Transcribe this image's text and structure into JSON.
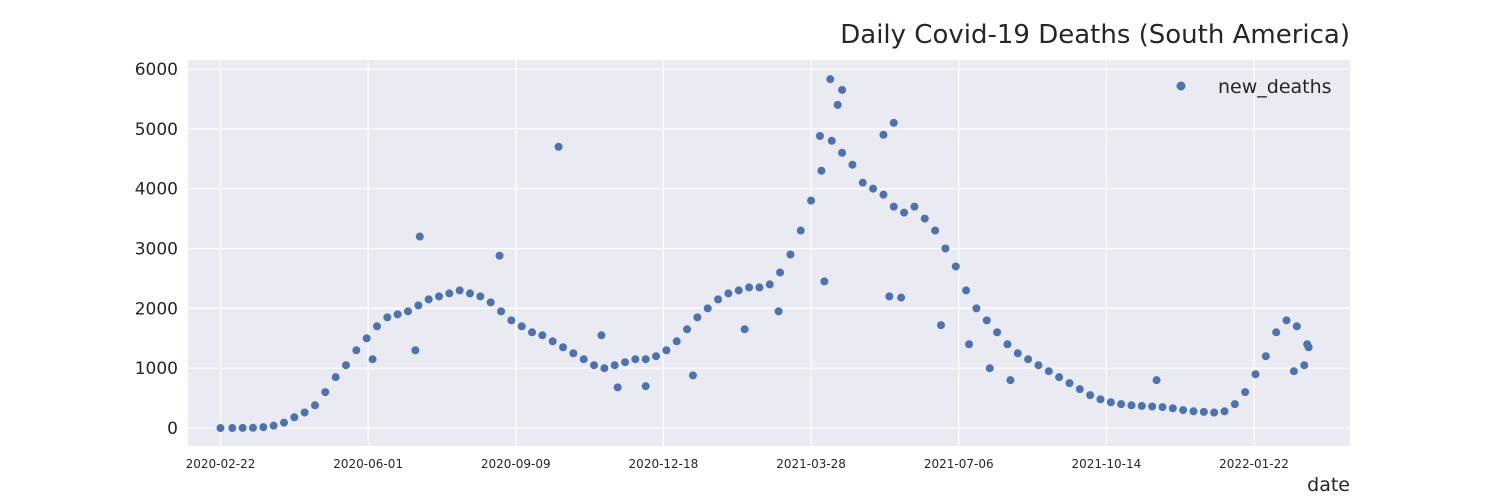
{
  "chart_data": {
    "type": "scatter",
    "title": "Daily Covid-19 Deaths (South America)",
    "xlabel": "date",
    "ylabel": "",
    "ylim": [
      -300,
      6150
    ],
    "xlim": [
      "2020-01-31",
      "2022-03-28"
    ],
    "yticks": [
      0,
      1000,
      2000,
      3000,
      4000,
      5000,
      6000
    ],
    "ytick_labels": [
      "0",
      "1000",
      "2000",
      "3000",
      "4000",
      "5000",
      "6000"
    ],
    "xticks": [
      "2020-02-22",
      "2020-06-01",
      "2020-09-09",
      "2020-12-18",
      "2021-03-28",
      "2021-07-06",
      "2021-10-14",
      "2022-01-22"
    ],
    "grid": true,
    "legend_position": "top-right",
    "colors": {
      "marker": "#4c72b0",
      "background": "#eaeaf2",
      "grid": "#ffffff"
    },
    "series": [
      {
        "name": "new_deaths",
        "points": [
          [
            "2020-02-22",
            0
          ],
          [
            "2020-03-01",
            0
          ],
          [
            "2020-03-08",
            2
          ],
          [
            "2020-03-15",
            5
          ],
          [
            "2020-03-22",
            15
          ],
          [
            "2020-03-29",
            40
          ],
          [
            "2020-04-05",
            90
          ],
          [
            "2020-04-12",
            180
          ],
          [
            "2020-04-19",
            260
          ],
          [
            "2020-04-26",
            380
          ],
          [
            "2020-05-03",
            600
          ],
          [
            "2020-05-10",
            850
          ],
          [
            "2020-05-17",
            1050
          ],
          [
            "2020-05-24",
            1300
          ],
          [
            "2020-05-31",
            1500
          ],
          [
            "2020-06-07",
            1700
          ],
          [
            "2020-06-14",
            1850
          ],
          [
            "2020-06-21",
            1900
          ],
          [
            "2020-06-28",
            1950
          ],
          [
            "2020-07-05",
            2050
          ],
          [
            "2020-07-12",
            2150
          ],
          [
            "2020-07-19",
            2200
          ],
          [
            "2020-07-26",
            2250
          ],
          [
            "2020-08-02",
            2300
          ],
          [
            "2020-08-09",
            2250
          ],
          [
            "2020-08-16",
            2200
          ],
          [
            "2020-08-23",
            2100
          ],
          [
            "2020-08-30",
            1950
          ],
          [
            "2020-09-06",
            1800
          ],
          [
            "2020-09-13",
            1700
          ],
          [
            "2020-09-20",
            1600
          ],
          [
            "2020-09-27",
            1550
          ],
          [
            "2020-10-04",
            1450
          ],
          [
            "2020-10-11",
            1350
          ],
          [
            "2020-10-18",
            1250
          ],
          [
            "2020-10-25",
            1150
          ],
          [
            "2020-11-01",
            1050
          ],
          [
            "2020-11-08",
            1000
          ],
          [
            "2020-11-15",
            1050
          ],
          [
            "2020-11-22",
            1100
          ],
          [
            "2020-11-29",
            1150
          ],
          [
            "2020-12-06",
            1150
          ],
          [
            "2020-12-13",
            1200
          ],
          [
            "2020-12-20",
            1300
          ],
          [
            "2020-12-27",
            1450
          ],
          [
            "2021-01-03",
            1650
          ],
          [
            "2021-01-10",
            1850
          ],
          [
            "2021-01-17",
            2000
          ],
          [
            "2021-01-24",
            2150
          ],
          [
            "2021-01-31",
            2250
          ],
          [
            "2021-02-07",
            2300
          ],
          [
            "2021-02-14",
            2350
          ],
          [
            "2021-02-21",
            2350
          ],
          [
            "2021-02-28",
            2400
          ],
          [
            "2021-03-07",
            2600
          ],
          [
            "2021-03-14",
            2900
          ],
          [
            "2021-03-21",
            3300
          ],
          [
            "2021-03-28",
            3800
          ],
          [
            "2021-04-04",
            4300
          ],
          [
            "2021-04-11",
            4800
          ],
          [
            "2021-04-18",
            4600
          ],
          [
            "2021-04-25",
            4400
          ],
          [
            "2021-05-02",
            4100
          ],
          [
            "2021-05-09",
            4000
          ],
          [
            "2021-05-16",
            3900
          ],
          [
            "2021-05-23",
            3700
          ],
          [
            "2021-05-30",
            3600
          ],
          [
            "2021-06-06",
            3700
          ],
          [
            "2021-06-13",
            3500
          ],
          [
            "2021-06-20",
            3300
          ],
          [
            "2021-06-27",
            3000
          ],
          [
            "2021-07-04",
            2700
          ],
          [
            "2021-07-11",
            2300
          ],
          [
            "2021-07-18",
            2000
          ],
          [
            "2021-07-25",
            1800
          ],
          [
            "2021-08-01",
            1600
          ],
          [
            "2021-08-08",
            1400
          ],
          [
            "2021-08-15",
            1250
          ],
          [
            "2021-08-22",
            1150
          ],
          [
            "2021-08-29",
            1050
          ],
          [
            "2021-09-05",
            950
          ],
          [
            "2021-09-12",
            850
          ],
          [
            "2021-09-19",
            750
          ],
          [
            "2021-09-26",
            650
          ],
          [
            "2021-10-03",
            550
          ],
          [
            "2021-10-10",
            480
          ],
          [
            "2021-10-17",
            430
          ],
          [
            "2021-10-24",
            400
          ],
          [
            "2021-10-31",
            380
          ],
          [
            "2021-11-07",
            370
          ],
          [
            "2021-11-14",
            360
          ],
          [
            "2021-11-21",
            350
          ],
          [
            "2021-11-28",
            330
          ],
          [
            "2021-12-05",
            300
          ],
          [
            "2021-12-12",
            280
          ],
          [
            "2021-12-19",
            270
          ],
          [
            "2021-12-26",
            260
          ],
          [
            "2022-01-02",
            280
          ],
          [
            "2022-01-09",
            400
          ],
          [
            "2022-01-16",
            600
          ],
          [
            "2022-01-23",
            900
          ],
          [
            "2022-01-30",
            1200
          ],
          [
            "2022-02-06",
            1600
          ],
          [
            "2022-02-13",
            1800
          ],
          [
            "2022-02-20",
            1700
          ],
          [
            "2022-02-27",
            1400
          ],
          [
            "2020-07-06",
            3200
          ],
          [
            "2020-08-29",
            2880
          ],
          [
            "2020-10-08",
            4700
          ],
          [
            "2021-04-10",
            5830
          ],
          [
            "2021-04-18",
            5650
          ],
          [
            "2021-04-15",
            5400
          ],
          [
            "2021-05-23",
            5100
          ],
          [
            "2021-04-03",
            4880
          ],
          [
            "2021-05-16",
            4900
          ],
          [
            "2021-04-06",
            2450
          ],
          [
            "2021-05-28",
            2180
          ],
          [
            "2021-05-20",
            2200
          ],
          [
            "2021-06-24",
            1720
          ],
          [
            "2021-07-13",
            1400
          ],
          [
            "2021-07-27",
            1000
          ],
          [
            "2021-08-10",
            800
          ],
          [
            "2021-11-17",
            800
          ],
          [
            "2022-02-18",
            950
          ],
          [
            "2022-02-25",
            1050
          ],
          [
            "2022-02-28",
            1350
          ],
          [
            "2021-02-11",
            1650
          ],
          [
            "2021-03-06",
            1950
          ],
          [
            "2021-01-07",
            880
          ],
          [
            "2020-12-06",
            700
          ],
          [
            "2020-11-17",
            680
          ],
          [
            "2020-11-06",
            1550
          ],
          [
            "2020-06-04",
            1150
          ],
          [
            "2020-07-03",
            1300
          ]
        ]
      }
    ]
  }
}
